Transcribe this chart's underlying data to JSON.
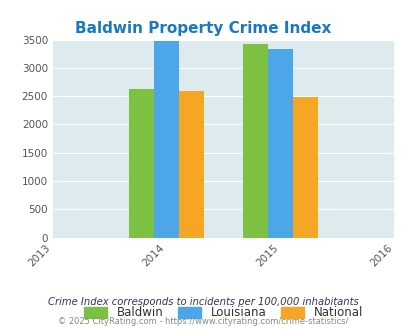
{
  "title": "Baldwin Property Crime Index",
  "years": [
    2013,
    2014,
    2015,
    2016
  ],
  "bar_groups": {
    "2014": {
      "Baldwin": 2630,
      "Louisiana": 3470,
      "National": 2590
    },
    "2015": {
      "Baldwin": 3420,
      "Louisiana": 3340,
      "National": 2490
    }
  },
  "colors": {
    "Baldwin": "#7dc142",
    "Louisiana": "#4da6e8",
    "National": "#f5a623"
  },
  "ylim": [
    0,
    3500
  ],
  "yticks": [
    0,
    500,
    1000,
    1500,
    2000,
    2500,
    3000,
    3500
  ],
  "plot_bg_color": "#ddeaee",
  "title_color": "#1a78c2",
  "title_fontsize": 11,
  "legend_labels": [
    "Baldwin",
    "Louisiana",
    "National"
  ],
  "footnote1": "Crime Index corresponds to incidents per 100,000 inhabitants",
  "footnote2": "© 2025 CityRating.com - https://www.cityrating.com/crime-statistics/",
  "bar_width": 0.22,
  "xtick_labels": [
    "2013",
    "2014",
    "2015",
    "2016"
  ],
  "xtick_positions": [
    0,
    1,
    2,
    3
  ]
}
